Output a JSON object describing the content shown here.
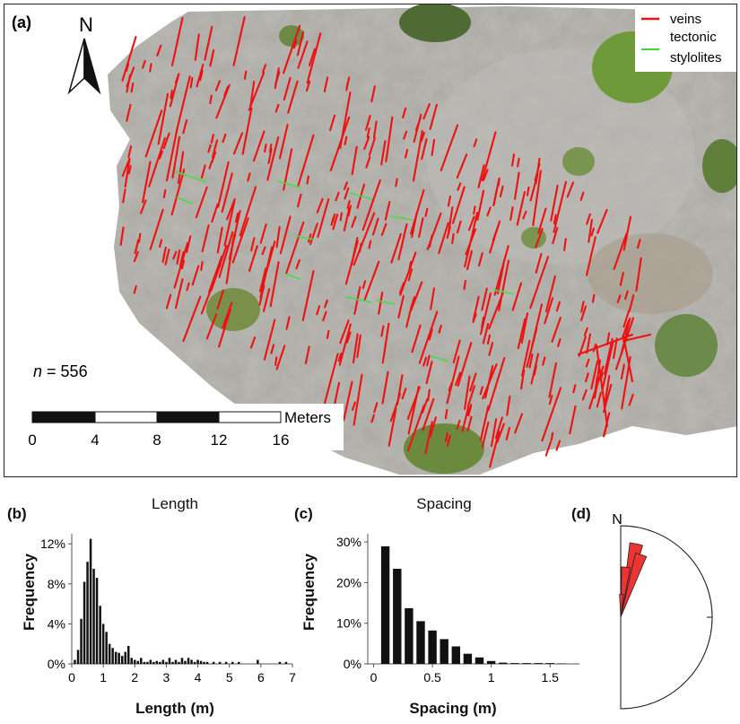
{
  "panel_a": {
    "label": "(a)",
    "north_label": "N",
    "n_text": "n = 556",
    "n_italic": "n",
    "n_value": "= 556",
    "legend": [
      {
        "label": "veins",
        "color": "#ee1111"
      },
      {
        "label": "tectonic",
        "color": "#33dd33"
      },
      {
        "label": "stylolites",
        "color": "#33dd33"
      }
    ],
    "scale_bar": {
      "unit": "Meters",
      "ticks": [
        "0",
        "4",
        "8",
        "12",
        "16"
      ]
    },
    "colors": {
      "vein": "#ee1111",
      "stylolite": "#44dd44",
      "rock": "#a9a7a1"
    }
  },
  "panel_b": {
    "label": "(b)"
  },
  "panel_c": {
    "label": "(c)"
  },
  "panel_d": {
    "label": "(d)",
    "north_label": "N"
  },
  "chart_data": [
    {
      "type": "bar",
      "title": "Length",
      "xlabel": "Length (m)",
      "ylabel": "Frequency",
      "xlim": [
        0,
        7
      ],
      "ylim": [
        0,
        0.13
      ],
      "xticks": [
        "0",
        "1",
        "2",
        "3",
        "4",
        "5",
        "6",
        "7"
      ],
      "yticks": [
        "0%",
        "4%",
        "8%",
        "12%"
      ],
      "bin_width": 0.1,
      "x": [
        0.1,
        0.2,
        0.3,
        0.4,
        0.5,
        0.6,
        0.7,
        0.8,
        0.9,
        1.0,
        1.1,
        1.2,
        1.3,
        1.4,
        1.5,
        1.6,
        1.7,
        1.8,
        1.9,
        2.0,
        2.1,
        2.2,
        2.3,
        2.4,
        2.5,
        2.6,
        2.7,
        2.8,
        2.9,
        3.0,
        3.1,
        3.2,
        3.3,
        3.4,
        3.5,
        3.6,
        3.7,
        3.8,
        3.9,
        4.0,
        4.1,
        4.2,
        4.3,
        4.5,
        4.7,
        4.9,
        5.1,
        5.3,
        5.9,
        6.6,
        6.8
      ],
      "values": [
        0.004,
        0.014,
        0.045,
        0.082,
        0.102,
        0.125,
        0.095,
        0.086,
        0.058,
        0.04,
        0.032,
        0.02,
        0.016,
        0.012,
        0.011,
        0.008,
        0.012,
        0.018,
        0.006,
        0.004,
        0.003,
        0.006,
        0.002,
        0.002,
        0.004,
        0.002,
        0.003,
        0.002,
        0.004,
        0.002,
        0.006,
        0.002,
        0.004,
        0.002,
        0.006,
        0.003,
        0.006,
        0.004,
        0.002,
        0.004,
        0.003,
        0.002,
        0.002,
        0.002,
        0.002,
        0.002,
        0.002,
        0.002,
        0.004,
        0.002,
        0.002
      ]
    },
    {
      "type": "bar",
      "title": "Spacing",
      "xlabel": "Spacing (m)",
      "ylabel": "Frequency",
      "xlim": [
        -0.05,
        1.75
      ],
      "ylim": [
        0,
        0.32
      ],
      "xticks": [
        "0",
        "0.5",
        "1",
        "1.5"
      ],
      "yticks": [
        "0%",
        "10%",
        "20%",
        "30%"
      ],
      "bin_width": 0.1,
      "x": [
        0.1,
        0.2,
        0.3,
        0.4,
        0.5,
        0.6,
        0.7,
        0.8,
        0.9,
        1.0,
        1.1,
        1.2,
        1.3,
        1.4,
        1.5,
        1.6
      ],
      "values": [
        0.289,
        0.234,
        0.137,
        0.105,
        0.082,
        0.061,
        0.043,
        0.025,
        0.016,
        0.007,
        0.003,
        0.002,
        0.002,
        0.002,
        0.002,
        0.001
      ]
    },
    {
      "type": "rose",
      "title": "",
      "north_label": "N",
      "petals": [
        {
          "azimuth_deg": 12,
          "relative_length": 0.82
        },
        {
          "azimuth_deg": 18,
          "relative_length": 0.72
        },
        {
          "azimuth_deg": 6,
          "relative_length": 0.55
        },
        {
          "azimuth_deg": 2,
          "relative_length": 0.25
        }
      ],
      "petal_color": "#ee3333"
    }
  ]
}
